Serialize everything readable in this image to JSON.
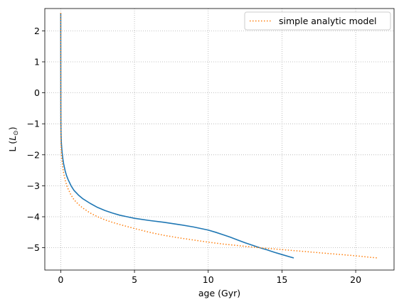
{
  "chart_data": {
    "type": "line",
    "title": "",
    "xlabel": "age (Gyr)",
    "ylabel": "L (",
    "ylabel_symbol": "L",
    "ylabel_subscript": "⊙",
    "ylabel_close": ")",
    "xlim": [
      -1.08,
      22.6
    ],
    "ylim": [
      -5.72,
      2.72
    ],
    "xticks": [
      0,
      5,
      10,
      15,
      20
    ],
    "xtick_labels": [
      "0",
      "5",
      "10",
      "15",
      "20"
    ],
    "yticks": [
      2,
      1,
      0,
      -1,
      -2,
      -3,
      -4,
      -5
    ],
    "ytick_labels": [
      "2",
      "1",
      "0",
      "−1",
      "−2",
      "−3",
      "−4",
      "−5"
    ],
    "grid": true,
    "legend_position": "upper right",
    "series": [
      {
        "color": "#1f77b4",
        "style": "solid",
        "x": [
          0.0,
          0.001,
          0.003,
          0.006,
          0.01,
          0.02,
          0.04,
          0.07,
          0.1,
          0.15,
          0.2,
          0.3,
          0.4,
          0.5,
          0.7,
          0.9,
          1.2,
          1.5,
          2.0,
          2.5,
          3.0,
          3.5,
          4.0,
          4.5,
          5.0,
          6.0,
          7.0,
          8.0,
          9.0,
          10.0,
          10.5,
          11.0,
          11.5,
          12.0,
          12.5,
          13.0,
          13.5,
          14.0,
          14.5,
          15.0,
          15.5,
          15.8
        ],
        "y": [
          2.58,
          1.6,
          0.5,
          -0.4,
          -0.9,
          -1.35,
          -1.6,
          -1.8,
          -1.95,
          -2.15,
          -2.3,
          -2.52,
          -2.68,
          -2.8,
          -3.0,
          -3.15,
          -3.3,
          -3.42,
          -3.57,
          -3.7,
          -3.8,
          -3.88,
          -3.95,
          -4.0,
          -4.05,
          -4.12,
          -4.18,
          -4.25,
          -4.33,
          -4.43,
          -4.5,
          -4.58,
          -4.66,
          -4.75,
          -4.84,
          -4.92,
          -5.0,
          -5.07,
          -5.15,
          -5.22,
          -5.29,
          -5.33
        ]
      },
      {
        "name": "simple analytic model",
        "color": "#ff7f0e",
        "style": "dotted",
        "x": [
          0.0,
          0.001,
          0.003,
          0.006,
          0.01,
          0.02,
          0.04,
          0.07,
          0.1,
          0.15,
          0.2,
          0.3,
          0.4,
          0.5,
          0.7,
          0.9,
          1.2,
          1.5,
          2.0,
          2.5,
          3.0,
          3.5,
          4.0,
          5.0,
          6.0,
          7.0,
          8.0,
          9.0,
          10.0,
          11.0,
          12.0,
          13.0,
          14.0,
          15.0,
          16.0,
          17.0,
          18.0,
          19.0,
          20.0,
          21.0,
          21.5
        ],
        "y": [
          2.58,
          1.5,
          0.3,
          -0.6,
          -1.1,
          -1.6,
          -1.9,
          -2.1,
          -2.25,
          -2.45,
          -2.6,
          -2.82,
          -2.98,
          -3.1,
          -3.3,
          -3.45,
          -3.6,
          -3.72,
          -3.88,
          -4.0,
          -4.1,
          -4.18,
          -4.25,
          -4.38,
          -4.5,
          -4.6,
          -4.68,
          -4.75,
          -4.82,
          -4.88,
          -4.93,
          -4.98,
          -5.02,
          -5.06,
          -5.1,
          -5.14,
          -5.18,
          -5.22,
          -5.26,
          -5.31,
          -5.33
        ]
      }
    ]
  }
}
